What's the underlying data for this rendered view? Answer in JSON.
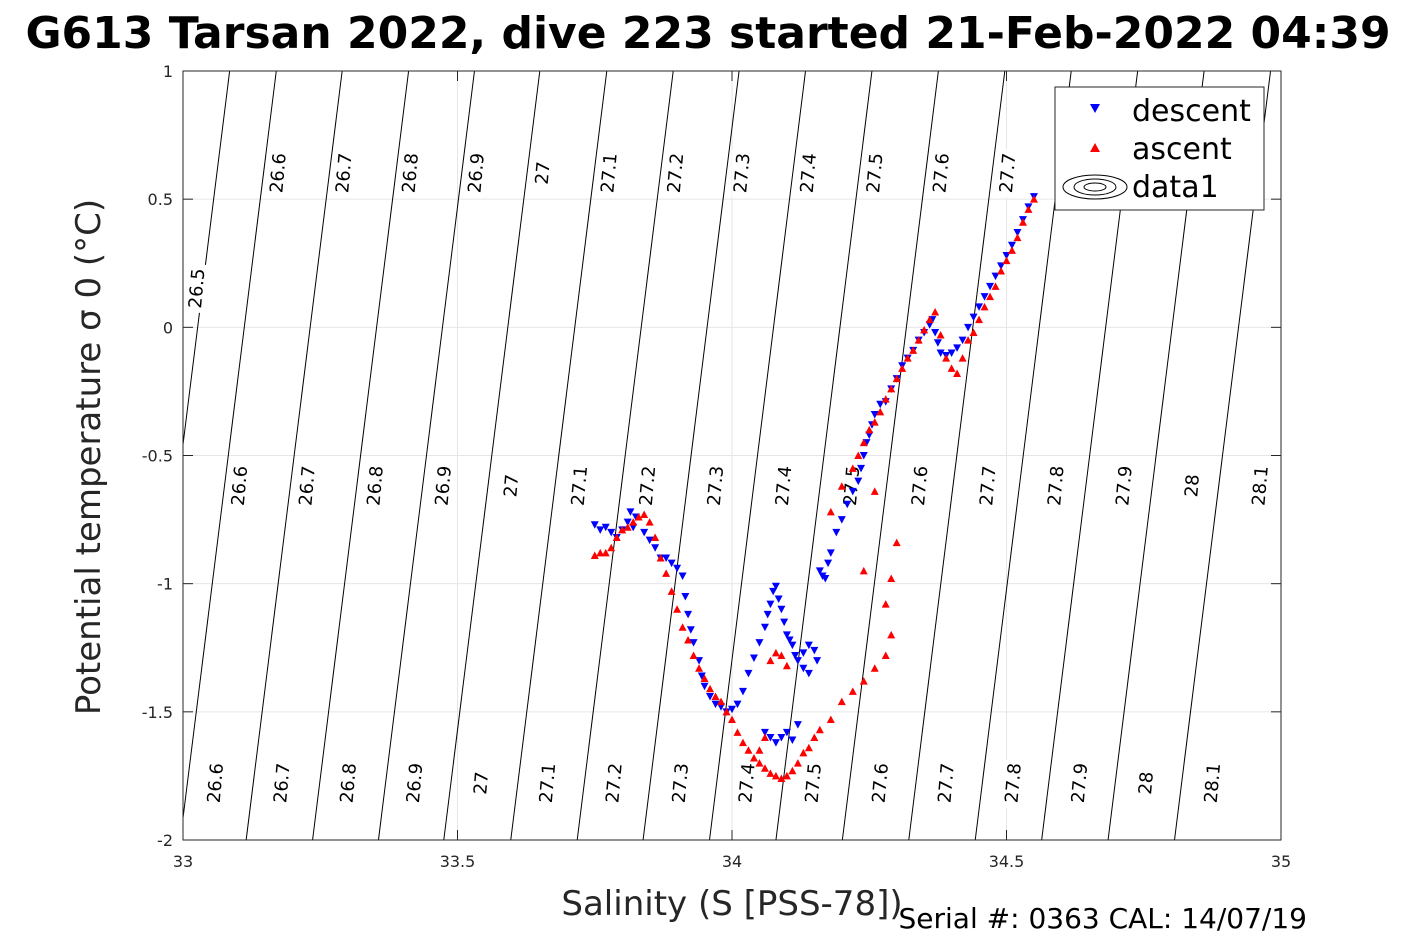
{
  "figure": {
    "title": "G613 Tarsan 2022, dive 223 started 21-Feb-2022 04:39",
    "footer": "Serial #: 0363  CAL: 14/07/19"
  },
  "chart_data": {
    "type": "scatter",
    "title": "G613 Tarsan 2022, dive 223 started 21-Feb-2022 04:39",
    "xlabel": "Salinity (S [PSS-78])",
    "ylabel": "Potential temperature σ 0 (°C)",
    "xlim": [
      33,
      35
    ],
    "ylim": [
      -2,
      1
    ],
    "xticks": [
      33,
      33.5,
      34,
      34.5,
      35
    ],
    "xtick_labels": [
      "33",
      "33.5",
      "34",
      "34.5",
      "35"
    ],
    "yticks": [
      -2,
      -1.5,
      -1,
      -0.5,
      0,
      0.5,
      1
    ],
    "ytick_labels": [
      "-2",
      "-1.5",
      "-1",
      "-0.5",
      "0",
      "0.5",
      "1"
    ],
    "grid": true,
    "legend_position": "top-right",
    "legend": [
      "descent",
      "ascent",
      "data1"
    ],
    "contour_levels": [
      26.5,
      26.6,
      26.7,
      26.8,
      26.9,
      27,
      27.1,
      27.2,
      27.3,
      27.4,
      27.5,
      27.6,
      27.7,
      27.8,
      27.9,
      28,
      28.1
    ],
    "contour_level_labels": [
      "26.5",
      "26.6",
      "26.7",
      "26.8",
      "26.9",
      "27",
      "27.1",
      "27.2",
      "27.3",
      "27.4",
      "27.5",
      "27.6",
      "27.7",
      "27.8",
      "27.9",
      "28",
      "28.1"
    ],
    "contour_anchors_top": [
      [
        26.6,
        33.167,
        0.95
      ],
      [
        26.7,
        33.287,
        0.95
      ],
      [
        26.8,
        33.408,
        0.95
      ],
      [
        26.9,
        33.528,
        0.95
      ],
      [
        27,
        33.647,
        0.95
      ],
      [
        27.1,
        33.769,
        0.95
      ],
      [
        27.2,
        33.89,
        0.95
      ],
      [
        27.3,
        34.01,
        0.95
      ],
      [
        27.4,
        34.131,
        0.95
      ],
      [
        27.5,
        34.252,
        0.95
      ],
      [
        27.6,
        34.373,
        0.95
      ],
      [
        27.7,
        34.494,
        0.95
      ],
      [
        27.8,
        34.615,
        0.95
      ],
      [
        27.9,
        34.736,
        0.95
      ],
      [
        28,
        34.857,
        0.95
      ],
      [
        28.1,
        34.978,
        0.95
      ]
    ],
    "contour_anchor_265": [
      33.015,
      -0.2
    ],
    "contour_slope": 0.0583,
    "contour_label_rows": [
      {
        "levels": [
          "26.5"
        ],
        "x": [
          33.025
        ],
        "y": 0.15
      },
      {
        "levels": [
          "26.6",
          "26.7",
          "26.8",
          "26.9",
          "27",
          "27.1",
          "27.2",
          "27.3",
          "27.4",
          "27.5",
          "27.6",
          "27.7"
        ],
        "x": [
          33.173,
          33.293,
          33.414,
          33.534,
          33.655,
          33.776,
          33.897,
          34.018,
          34.139,
          34.26,
          34.381,
          34.502
        ],
        "y": 0.6
      },
      {
        "levels": [
          "26.6",
          "26.7",
          "26.8",
          "26.9",
          "27",
          "27.1",
          "27.2",
          "27.3",
          "27.4",
          "27.5",
          "27.6",
          "27.7",
          "27.8",
          "27.9",
          "28",
          "28.1"
        ],
        "x": [
          33.103,
          33.226,
          33.35,
          33.474,
          33.598,
          33.722,
          33.846,
          33.97,
          34.094,
          34.218,
          34.342,
          34.466,
          34.59,
          34.714,
          34.838,
          34.962
        ],
        "y": -0.62
      },
      {
        "levels": [
          "26.6",
          "26.7",
          "26.8",
          "26.9",
          "27",
          "27.1",
          "27.2",
          "27.3",
          "27.4",
          "27.5",
          "27.6",
          "27.7",
          "27.8",
          "27.9",
          "28",
          "28.1"
        ],
        "x": [
          33.059,
          33.18,
          33.301,
          33.422,
          33.543,
          33.664,
          33.785,
          33.906,
          34.027,
          34.148,
          34.27,
          34.39,
          34.512,
          34.633,
          34.754,
          34.875
        ],
        "y": -1.78
      }
    ],
    "series": [
      {
        "name": "descent",
        "marker": "triangle-down",
        "color": "#0000ff",
        "points": [
          [
            33.75,
            -0.77
          ],
          [
            33.76,
            -0.79
          ],
          [
            33.77,
            -0.78
          ],
          [
            33.78,
            -0.8
          ],
          [
            33.79,
            -0.82
          ],
          [
            33.8,
            -0.79
          ],
          [
            33.81,
            -0.76
          ],
          [
            33.815,
            -0.72
          ],
          [
            33.82,
            -0.78
          ],
          [
            33.825,
            -0.74
          ],
          [
            33.84,
            -0.8
          ],
          [
            33.85,
            -0.83
          ],
          [
            33.86,
            -0.86
          ],
          [
            33.87,
            -0.9
          ],
          [
            33.88,
            -0.9
          ],
          [
            33.89,
            -0.92
          ],
          [
            33.9,
            -0.94
          ],
          [
            33.91,
            -0.97
          ],
          [
            33.915,
            -1.05
          ],
          [
            33.92,
            -1.12
          ],
          [
            33.925,
            -1.18
          ],
          [
            33.93,
            -1.23
          ],
          [
            33.94,
            -1.3
          ],
          [
            33.945,
            -1.36
          ],
          [
            33.95,
            -1.4
          ],
          [
            33.96,
            -1.44
          ],
          [
            33.97,
            -1.47
          ],
          [
            33.98,
            -1.48
          ],
          [
            33.99,
            -1.5
          ],
          [
            34.0,
            -1.49
          ],
          [
            34.01,
            -1.47
          ],
          [
            34.02,
            -1.42
          ],
          [
            34.03,
            -1.35
          ],
          [
            34.04,
            -1.29
          ],
          [
            34.05,
            -1.23
          ],
          [
            34.06,
            -1.17
          ],
          [
            34.065,
            -1.12
          ],
          [
            34.07,
            -1.08
          ],
          [
            34.075,
            -1.03
          ],
          [
            34.08,
            -1.01
          ],
          [
            34.085,
            -1.06
          ],
          [
            34.09,
            -1.1
          ],
          [
            34.095,
            -1.15
          ],
          [
            34.1,
            -1.2
          ],
          [
            34.105,
            -1.22
          ],
          [
            34.11,
            -1.24
          ],
          [
            34.115,
            -1.28
          ],
          [
            34.12,
            -1.3
          ],
          [
            34.13,
            -1.33
          ],
          [
            34.14,
            -1.35
          ],
          [
            34.06,
            -1.58
          ],
          [
            34.07,
            -1.6
          ],
          [
            34.08,
            -1.62
          ],
          [
            34.09,
            -1.6
          ],
          [
            34.1,
            -1.58
          ],
          [
            34.11,
            -1.61
          ],
          [
            34.12,
            -1.55
          ],
          [
            34.13,
            -1.27
          ],
          [
            34.14,
            -1.24
          ],
          [
            34.15,
            -1.26
          ],
          [
            34.155,
            -1.3
          ],
          [
            34.16,
            -0.95
          ],
          [
            34.165,
            -0.97
          ],
          [
            34.17,
            -0.98
          ],
          [
            34.175,
            -0.92
          ],
          [
            34.18,
            -0.88
          ],
          [
            34.19,
            -0.8
          ],
          [
            34.2,
            -0.75
          ],
          [
            34.21,
            -0.69
          ],
          [
            34.22,
            -0.64
          ],
          [
            34.23,
            -0.6
          ],
          [
            34.235,
            -0.55
          ],
          [
            34.24,
            -0.5
          ],
          [
            34.245,
            -0.45
          ],
          [
            34.25,
            -0.42
          ],
          [
            34.255,
            -0.38
          ],
          [
            34.26,
            -0.34
          ],
          [
            34.27,
            -0.3
          ],
          [
            34.28,
            -0.29
          ],
          [
            34.29,
            -0.24
          ],
          [
            34.3,
            -0.2
          ],
          [
            34.31,
            -0.15
          ],
          [
            34.32,
            -0.12
          ],
          [
            34.33,
            -0.09
          ],
          [
            34.34,
            -0.05
          ],
          [
            34.35,
            -0.02
          ],
          [
            34.36,
            0.01
          ],
          [
            34.365,
            0.03
          ],
          [
            34.37,
            -0.02
          ],
          [
            34.375,
            -0.06
          ],
          [
            34.38,
            -0.1
          ],
          [
            34.39,
            -0.11
          ],
          [
            34.4,
            -0.1
          ],
          [
            34.41,
            -0.08
          ],
          [
            34.42,
            -0.05
          ],
          [
            34.43,
            0.0
          ],
          [
            34.44,
            0.04
          ],
          [
            34.45,
            0.08
          ],
          [
            34.46,
            0.12
          ],
          [
            34.47,
            0.16
          ],
          [
            34.48,
            0.2
          ],
          [
            34.49,
            0.24
          ],
          [
            34.5,
            0.28
          ],
          [
            34.51,
            0.32
          ],
          [
            34.52,
            0.37
          ],
          [
            34.53,
            0.42
          ],
          [
            34.54,
            0.47
          ],
          [
            34.55,
            0.51
          ]
        ]
      },
      {
        "name": "ascent",
        "marker": "triangle-up",
        "color": "#ff0000",
        "points": [
          [
            33.75,
            -0.89
          ],
          [
            33.76,
            -0.88
          ],
          [
            33.77,
            -0.88
          ],
          [
            33.78,
            -0.86
          ],
          [
            33.79,
            -0.82
          ],
          [
            33.8,
            -0.79
          ],
          [
            33.81,
            -0.78
          ],
          [
            33.82,
            -0.76
          ],
          [
            33.83,
            -0.74
          ],
          [
            33.84,
            -0.73
          ],
          [
            33.85,
            -0.76
          ],
          [
            33.86,
            -0.82
          ],
          [
            33.87,
            -0.9
          ],
          [
            33.88,
            -0.96
          ],
          [
            33.89,
            -1.03
          ],
          [
            33.9,
            -1.1
          ],
          [
            33.91,
            -1.17
          ],
          [
            33.92,
            -1.22
          ],
          [
            33.93,
            -1.28
          ],
          [
            33.94,
            -1.33
          ],
          [
            33.95,
            -1.37
          ],
          [
            33.96,
            -1.41
          ],
          [
            33.97,
            -1.44
          ],
          [
            33.98,
            -1.46
          ],
          [
            33.99,
            -1.5
          ],
          [
            34.0,
            -1.53
          ],
          [
            34.01,
            -1.58
          ],
          [
            34.02,
            -1.62
          ],
          [
            34.03,
            -1.65
          ],
          [
            34.04,
            -1.68
          ],
          [
            34.05,
            -1.7
          ],
          [
            34.06,
            -1.72
          ],
          [
            34.07,
            -1.74
          ],
          [
            34.08,
            -1.75
          ],
          [
            34.09,
            -1.76
          ],
          [
            34.1,
            -1.75
          ],
          [
            34.11,
            -1.73
          ],
          [
            34.12,
            -1.7
          ],
          [
            34.13,
            -1.66
          ],
          [
            34.14,
            -1.64
          ],
          [
            34.15,
            -1.6
          ],
          [
            34.16,
            -1.57
          ],
          [
            34.18,
            -1.53
          ],
          [
            34.2,
            -1.46
          ],
          [
            34.22,
            -1.42
          ],
          [
            34.24,
            -1.38
          ],
          [
            34.26,
            -1.33
          ],
          [
            34.28,
            -1.28
          ],
          [
            34.29,
            -1.2
          ],
          [
            34.05,
            -1.65
          ],
          [
            34.06,
            -1.6
          ],
          [
            34.07,
            -1.3
          ],
          [
            34.08,
            -1.27
          ],
          [
            34.09,
            -1.28
          ],
          [
            34.1,
            -1.32
          ],
          [
            34.24,
            -0.95
          ],
          [
            34.26,
            -0.64
          ],
          [
            34.28,
            -1.08
          ],
          [
            34.29,
            -0.98
          ],
          [
            34.3,
            -0.84
          ],
          [
            34.18,
            -0.72
          ],
          [
            34.2,
            -0.62
          ],
          [
            34.22,
            -0.55
          ],
          [
            34.23,
            -0.5
          ],
          [
            34.24,
            -0.45
          ],
          [
            34.25,
            -0.4
          ],
          [
            34.26,
            -0.37
          ],
          [
            34.27,
            -0.33
          ],
          [
            34.28,
            -0.28
          ],
          [
            34.29,
            -0.24
          ],
          [
            34.3,
            -0.2
          ],
          [
            34.31,
            -0.16
          ],
          [
            34.32,
            -0.12
          ],
          [
            34.33,
            -0.09
          ],
          [
            34.34,
            -0.05
          ],
          [
            34.35,
            -0.01
          ],
          [
            34.36,
            0.03
          ],
          [
            34.37,
            0.06
          ],
          [
            34.38,
            -0.03
          ],
          [
            34.39,
            -0.12
          ],
          [
            34.4,
            -0.16
          ],
          [
            34.41,
            -0.18
          ],
          [
            34.42,
            -0.12
          ],
          [
            34.43,
            -0.05
          ],
          [
            34.44,
            -0.02
          ],
          [
            34.45,
            0.03
          ],
          [
            34.46,
            0.08
          ],
          [
            34.47,
            0.12
          ],
          [
            34.48,
            0.16
          ],
          [
            34.49,
            0.22
          ],
          [
            34.5,
            0.26
          ],
          [
            34.51,
            0.3
          ],
          [
            34.52,
            0.35
          ],
          [
            34.53,
            0.41
          ],
          [
            34.54,
            0.46
          ],
          [
            34.55,
            0.5
          ]
        ]
      }
    ]
  }
}
